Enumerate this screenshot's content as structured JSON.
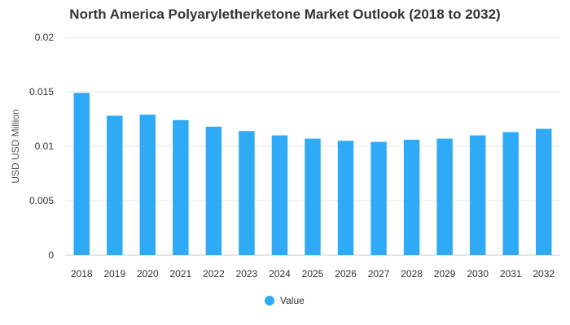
{
  "chart_data": {
    "type": "bar",
    "title": "North America Polyaryletherketone Market Outlook (2018 to 2032)",
    "xlabel": "",
    "ylabel": "USD USD Million",
    "ylim": [
      0,
      0.02
    ],
    "yticks": [
      "0",
      "0.005",
      "0.01",
      "0.015",
      "0.02"
    ],
    "grid": true,
    "legend_position": "bottom",
    "categories": [
      "2018",
      "2019",
      "2020",
      "2021",
      "2022",
      "2023",
      "2024",
      "2025",
      "2026",
      "2027",
      "2028",
      "2029",
      "2030",
      "2031",
      "2032"
    ],
    "series": [
      {
        "name": "Value",
        "color": "#2eaaf7",
        "values": [
          0.0149,
          0.0128,
          0.0129,
          0.0124,
          0.0118,
          0.0114,
          0.011,
          0.0107,
          0.0105,
          0.0104,
          0.0106,
          0.0107,
          0.011,
          0.0113,
          0.0116
        ]
      }
    ]
  }
}
